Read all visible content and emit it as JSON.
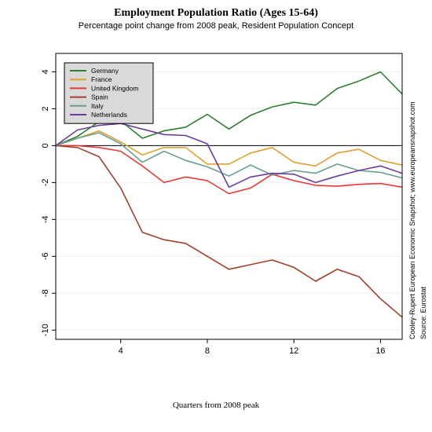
{
  "chart_data": {
    "type": "line",
    "title": "Employment Population Ratio (Ages 15-64)",
    "subtitle": "Percentage point change from 2008 peak, Resident Population Concept",
    "xlabel": "Quarters from 2008 peak",
    "ylabel": "",
    "xlim": [
      1,
      17
    ],
    "ylim": [
      -10.5,
      5
    ],
    "xticks": [
      4,
      8,
      12,
      16
    ],
    "yticks": [
      4,
      2,
      0,
      -2,
      -4,
      -6,
      -8,
      -10
    ],
    "x": [
      1,
      2,
      3,
      4,
      5,
      6,
      7,
      8,
      9,
      10,
      11,
      12,
      13,
      14,
      15,
      16,
      17
    ],
    "legend_position": "top-left",
    "zero_line": true,
    "series": [
      {
        "name": "Germany",
        "color": "#2e7d32",
        "values": [
          0,
          0.5,
          1.3,
          1.35,
          0.4,
          0.8,
          1.0,
          1.7,
          0.9,
          1.65,
          2.1,
          2.35,
          2.2,
          3.1,
          3.5,
          4.0,
          2.8
        ]
      },
      {
        "name": "France",
        "color": "#e0a030",
        "values": [
          0,
          0.4,
          0.8,
          0.2,
          -0.5,
          -0.1,
          -0.1,
          -1.0,
          -1.0,
          -0.4,
          -0.1,
          -0.9,
          -1.1,
          -0.4,
          -0.2,
          -0.8,
          -1.05
        ]
      },
      {
        "name": "United Kingdom",
        "color": "#e53935",
        "values": [
          0,
          0.0,
          -0.1,
          -0.3,
          -1.1,
          -2.0,
          -1.7,
          -1.9,
          -2.6,
          -2.3,
          -1.55,
          -1.9,
          -2.15,
          -2.2,
          -2.1,
          -2.05,
          -2.25
        ]
      },
      {
        "name": "Spain",
        "color": "#a0402a",
        "values": [
          0,
          -0.1,
          -0.6,
          -2.3,
          -4.7,
          -5.1,
          -5.3,
          -6.0,
          -6.7,
          -6.45,
          -6.2,
          -6.6,
          -7.35,
          -6.7,
          -7.1,
          -8.3,
          -9.3
        ]
      },
      {
        "name": "Italy",
        "color": "#6a9e8e",
        "values": [
          0,
          0.4,
          0.7,
          0.1,
          -0.9,
          -0.3,
          -0.8,
          -1.15,
          -1.65,
          -1.05,
          -1.6,
          -1.35,
          -1.5,
          -1.0,
          -1.35,
          -1.45,
          -1.75
        ]
      },
      {
        "name": "Netherlands",
        "color": "#6a3d9a",
        "values": [
          0,
          0.85,
          1.1,
          1.2,
          0.9,
          0.6,
          0.55,
          0.1,
          -2.25,
          -1.7,
          -1.5,
          -1.55,
          -2.0,
          -1.65,
          -1.35,
          -1.1,
          -1.5
        ]
      }
    ],
    "credits": [
      "Cooley-Rupert European Economic Snapshot; www.europeansnapshot.com",
      "Source: Eurostat"
    ]
  }
}
